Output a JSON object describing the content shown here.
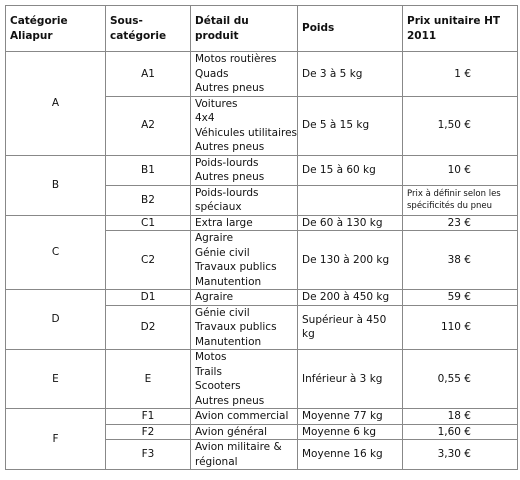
{
  "table": {
    "headers": [
      "Catégorie Aliapur",
      "Sous-catégorie",
      "Détail du produit",
      "Poids",
      "Prix unitaire HT 2011"
    ],
    "groups": [
      {
        "category": "A",
        "rows": [
          {
            "subcategory": "A1",
            "details": [
              "Motos routières",
              "Quads",
              "Autres pneus"
            ],
            "weight": "De 3 à 5 kg",
            "price": "1 €"
          },
          {
            "subcategory": "A2",
            "details": [
              "Voitures",
              "4x4",
              "Véhicules utilitaires",
              "Autres pneus"
            ],
            "weight": "De 5 à 15 kg",
            "price": "1,50 €"
          }
        ]
      },
      {
        "category": "B",
        "rows": [
          {
            "subcategory": "B1",
            "details": [
              "Poids-lourds",
              "Autres pneus"
            ],
            "weight": "De 15 à 60 kg",
            "price": "10 €"
          },
          {
            "subcategory": "B2",
            "details": [
              "Poids-lourds",
              "spéciaux"
            ],
            "price_note": "Prix à définir selon les spécificités du pneu"
          }
        ]
      },
      {
        "category": "C",
        "rows": [
          {
            "subcategory": "C1",
            "details": [
              "Extra large"
            ],
            "weight": "De 60 à 130 kg",
            "price": "23 €"
          },
          {
            "subcategory": "C2",
            "details": [
              "Agraire",
              "Génie civil",
              "Travaux publics",
              "Manutention"
            ],
            "weight": "De 130 à 200 kg",
            "price": "38 €"
          }
        ]
      },
      {
        "category": "D",
        "rows": [
          {
            "subcategory": "D1",
            "details": [
              "Agraire"
            ],
            "weight": "De 200 à 450 kg",
            "price": "59 €"
          },
          {
            "subcategory": "D2",
            "details": [
              "Génie civil",
              "Travaux publics",
              "Manutention"
            ],
            "weight": "Supérieur à 450 kg",
            "price": "110 €"
          }
        ]
      },
      {
        "category": "E",
        "rows": [
          {
            "subcategory": "E",
            "details": [
              "Motos",
              "Trails",
              "Scooters",
              "Autres pneus"
            ],
            "weight": "Inférieur à 3 kg",
            "price": "0,55 €"
          }
        ]
      },
      {
        "category": "F",
        "rows": [
          {
            "subcategory": "F1",
            "details": [
              "Avion commercial"
            ],
            "weight": "Moyenne 77 kg",
            "price": "18 €"
          },
          {
            "subcategory": "F2",
            "details": [
              "Avion général"
            ],
            "weight": "Moyenne 6 kg",
            "price": "1,60 €"
          },
          {
            "subcategory": "F3",
            "details": [
              "Avion militaire &",
              "régional"
            ],
            "weight": "Moyenne 16 kg",
            "price": "3,30 €"
          }
        ]
      }
    ]
  }
}
